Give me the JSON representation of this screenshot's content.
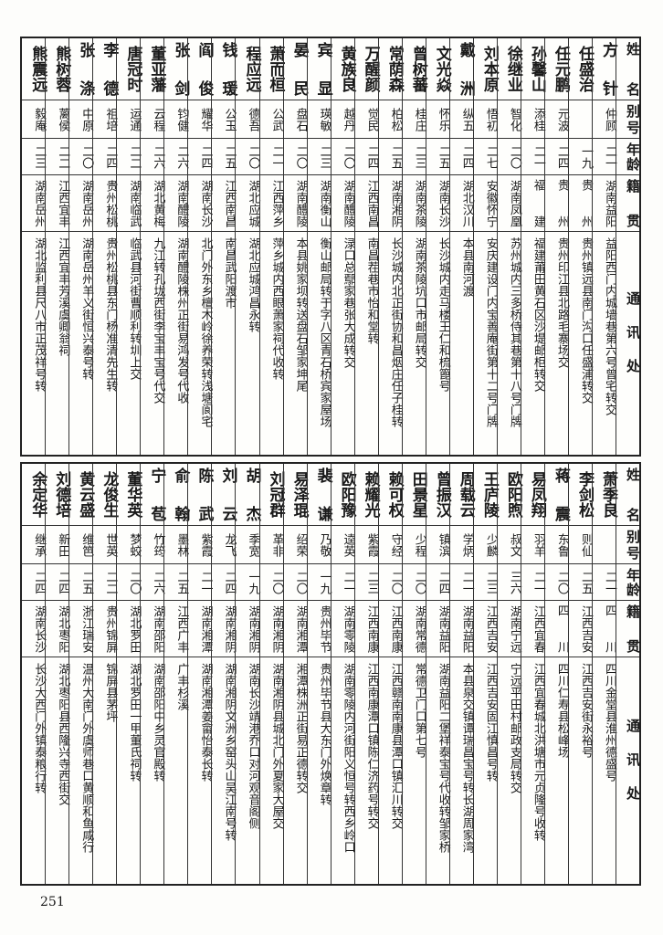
{
  "headers": {
    "name": "姓名",
    "alias": "别号",
    "age": "年龄",
    "origin": "籍贯",
    "address": "通讯处"
  },
  "upper": [
    {
      "name": "方针",
      "alias": "仲顾",
      "age": "二一",
      "origin": "湖南益阳",
      "address": "益阳西门内城墙巷第六号曾宅转交"
    },
    {
      "name": "任盛治",
      "alias": "",
      "age": "一九",
      "origin": "贵州",
      "address": "贵州镇远县南门沟口任盛浦转交"
    },
    {
      "name": "任元鹏",
      "alias": "元波",
      "age": "二四",
      "origin": "贵州",
      "address": "贵州印江县北路毛寨场交"
    },
    {
      "name": "孙馨山",
      "alias": "添桂",
      "age": "二一",
      "origin": "福建",
      "address": "福建莆田黄石区沙堤邮柜转交"
    },
    {
      "name": "徐继业",
      "alias": "智化",
      "age": "二〇",
      "origin": "湖南凤凰",
      "address": "苏州城内三多桥侍其巷第十八号门牌"
    },
    {
      "name": "刘本原",
      "alias": "悟初",
      "age": "二七",
      "origin": "安徽怀宁",
      "address": "安庆建设门内宝善庵街第十二号门牌"
    },
    {
      "name": "戴洲",
      "alias": "纵五",
      "age": "二四",
      "origin": "湖北汉川",
      "address": "本县南河渡"
    },
    {
      "name": "文光焱",
      "alias": "怀乐",
      "age": "二五",
      "origin": "湖南长沙",
      "address": "长沙城内走马楼王仁和梳篦号"
    },
    {
      "name": "曾树蕃",
      "alias": "桂庄",
      "age": "二三",
      "origin": "湖南茶陵",
      "address": "湖南茶陵坑口市邮局转交"
    },
    {
      "name": "常荫森",
      "alias": "柏松",
      "age": "二五",
      "origin": "湖南湘阴",
      "address": "长沙城内北正街协和昌烟庄任子桂转"
    },
    {
      "name": "万醒颜",
      "alias": "觉民",
      "age": "二四",
      "origin": "江西南昌",
      "address": "南昌茬巷市怡和堂转"
    },
    {
      "name": "黄族良",
      "alias": "越丹",
      "age": "二〇",
      "origin": "湖南醴陵",
      "address": "渌口总鄢家巷张大成转交"
    },
    {
      "name": "宾显",
      "alias": "瑛敏",
      "age": "二三",
      "origin": "湖南衡山",
      "address": "衡山邮局转于字八区青石桥宾家屋场"
    },
    {
      "name": "晏民",
      "alias": "盘石",
      "age": "二〇",
      "origin": "湖南醴陵",
      "address": "本县姚家坝转送盘石邹家坤尾"
    },
    {
      "name": "萧而桓",
      "alias": "公武",
      "age": "二一",
      "origin": "江西萍乡",
      "address": "萍乡城内西眼萧家祠代收转"
    },
    {
      "name": "程应远",
      "alias": "德吾",
      "age": "二〇",
      "origin": "湖北应城",
      "address": "湖北应城鸿昌永转"
    },
    {
      "name": "钱瑗",
      "alias": "公玉",
      "age": "二五",
      "origin": "江西南昌",
      "address": "南昌武阳渡市"
    },
    {
      "name": "阎俊",
      "alias": "耀华",
      "age": "二四",
      "origin": "湖南长沙",
      "address": "北门外东乡檀木岭徐养荣转浅塘阆宅"
    },
    {
      "name": "张剑",
      "alias": "钧健",
      "age": "二六",
      "origin": "湖南醴陵",
      "address": "湖南醴陵株州正街易鸿发号代收"
    },
    {
      "name": "董亚藩",
      "alias": "云程",
      "age": "二六",
      "origin": "湖北黄梅",
      "address": "九江转孔垅西街李宝丰宝号代交"
    },
    {
      "name": "唐冠时",
      "alias": "运通",
      "age": "二二",
      "origin": "湖南临武",
      "address": "临武县河街曹顺利转圳上交"
    },
    {
      "name": "李德",
      "alias": "祖培",
      "age": "二四",
      "origin": "贵州松桃",
      "address": "贵州松桃县东门杨准清先生转"
    },
    {
      "name": "张涤",
      "alias": "中原",
      "age": "二〇",
      "origin": "湖南岳州",
      "address": "湖南岳州羊义街恒兴泰号转"
    },
    {
      "name": "熊树蓉",
      "alias": "蓠侯",
      "age": "二二",
      "origin": "江西宜丰",
      "address": "江西宜丰芳溪虞卿翁祠"
    },
    {
      "name": "熊震远",
      "alias": "毅庵",
      "age": "二三",
      "origin": "湖南岳州",
      "address": "湖北监利县尺八市正茂祥号转"
    }
  ],
  "lower": [
    {
      "name": "萧季良",
      "alias": "",
      "age": "二一",
      "origin": "四川",
      "address": "四川金堂县淮州德盛号"
    },
    {
      "name": "李剑松",
      "alias": "则仙",
      "age": "二五",
      "origin": "江西吉安",
      "address": "江西吉安街永裕号"
    },
    {
      "name": "蒋震",
      "alias": "东鲁",
      "age": "二〇",
      "origin": "四川",
      "address": "四川仁寿县松峰场"
    },
    {
      "name": "易凤翔",
      "alias": "羽羊",
      "age": "二一",
      "origin": "江西宜春",
      "address": "江西宜春城北洪塘市元贞隆号收转"
    },
    {
      "name": "欧阳煦",
      "alias": "叔文",
      "age": "三六",
      "origin": "湖南宁远",
      "address": "宁远平田村邮政支局转交"
    },
    {
      "name": "王庐陵",
      "alias": "少麟",
      "age": "二三",
      "origin": "江西吉安",
      "address": "江西吉安固江慎昌号转"
    },
    {
      "name": "周载云",
      "alias": "学炳",
      "age": "二一",
      "origin": "湖南益阳",
      "address": "本县泉交镇谭瑞昌宝号转长湖周家湾"
    },
    {
      "name": "曾振汉",
      "alias": "镇滨",
      "age": "二四",
      "origin": "湖南益阳",
      "address": "湖南益阳二堡祥泰宝号代收转邹家桥"
    },
    {
      "name": "田景星",
      "alias": "少程",
      "age": "二〇",
      "origin": "湖南常德",
      "address": "常德卫门口第七号"
    },
    {
      "name": "赖可权",
      "alias": "守经",
      "age": "二〇",
      "origin": "江西南康",
      "address": "江西赣南南康县潭口镇汇川转交"
    },
    {
      "name": "赖耀光",
      "alias": "紫霞",
      "age": "二三",
      "origin": "江西南康",
      "address": "江西南康潭口镇陈仁济药号转交"
    },
    {
      "name": "欧阳豫",
      "alias": "逵英",
      "age": "二一",
      "origin": "湖南零陵",
      "address": "湖南零陵内河街阳义恒号转西乡岭口"
    },
    {
      "name": "裴谦",
      "alias": "乃敬",
      "age": "一九",
      "origin": "贵州毕节",
      "address": "贵州毕节县大东门外焕章转"
    },
    {
      "name": "易泽琨",
      "alias": "绍荣",
      "age": "二〇",
      "origin": "湖南湘潭",
      "address": "湘潭株洲正街易正德转交"
    },
    {
      "name": "刘冠群",
      "alias": "革非",
      "age": "二〇",
      "origin": "湖南湘阴",
      "address": "湖南湘阴县城北门外夏家大屋交"
    },
    {
      "name": "胡杰",
      "alias": "季宽",
      "age": "一九",
      "origin": "湖南湘阴",
      "address": "湖南长沙靖港乔口对河观音阁侧"
    },
    {
      "name": "刘云",
      "alias": "龙飞",
      "age": "二四",
      "origin": "湖南湘阴",
      "address": "湖南湘阴文洲乡窑头山吴江南号转"
    },
    {
      "name": "陈武",
      "alias": "紫霞",
      "age": "二一",
      "origin": "湖南湘潭",
      "address": "湖南湘潭姜畲怡泰长转"
    },
    {
      "name": "俞翰",
      "alias": "墨林",
      "age": "二五",
      "origin": "江西广丰",
      "address": "广丰杉溪"
    },
    {
      "name": "宁苞",
      "alias": "竹筠",
      "age": "二六",
      "origin": "湖南邵阳",
      "address": "湖南邵阳中乡灵官殿转"
    },
    {
      "name": "董华英",
      "alias": "梦蛟",
      "age": "二〇",
      "origin": "湖北罗田",
      "address": "湖北罗田一甲董氏祠转"
    },
    {
      "name": "龙俊生",
      "alias": "世英",
      "age": "二二",
      "origin": "贵州锦屏",
      "address": "锦屏县茅坪"
    },
    {
      "name": "黄云盛",
      "alias": "维笆",
      "age": "二五",
      "origin": "浙江瑞安",
      "address": "温州大南门外虞师巷口黄顺和鱼咸行"
    },
    {
      "name": "刘德培",
      "alias": "新田",
      "age": "二四",
      "origin": "湖北枣阳",
      "address": "湖北枣阳县西隆兴寺西街交"
    },
    {
      "name": "余定华",
      "alias": "继承",
      "age": "二四",
      "origin": "湖南长沙",
      "address": "长沙大西门外镇泰粮行转"
    }
  ],
  "page_number": "251"
}
